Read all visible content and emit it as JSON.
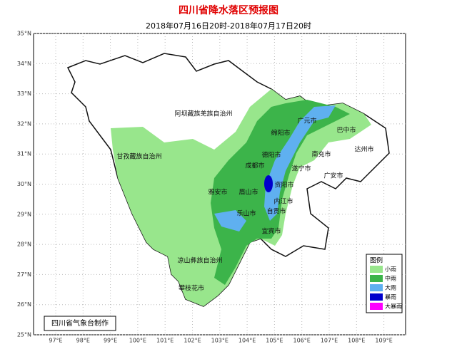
{
  "header": {
    "title": "四川省降水落区预报图",
    "subtitle": "2018年07月16日20时-2018年07月17日20时"
  },
  "map": {
    "lat_ticks": [
      {
        "value": 35,
        "label": "35°N"
      },
      {
        "value": 34,
        "label": "34°N"
      },
      {
        "value": 33,
        "label": "33°N"
      },
      {
        "value": 32,
        "label": "32°N"
      },
      {
        "value": 31,
        "label": "31°N"
      },
      {
        "value": 30,
        "label": "30°N"
      },
      {
        "value": 29,
        "label": "29°N"
      },
      {
        "value": 28,
        "label": "28°N"
      },
      {
        "value": 27,
        "label": "27°N"
      },
      {
        "value": 26,
        "label": "26°N"
      },
      {
        "value": 25,
        "label": "25°N"
      }
    ],
    "lon_ticks": [
      {
        "value": 97,
        "label": "97°E"
      },
      {
        "value": 98,
        "label": "98°E"
      },
      {
        "value": 99,
        "label": "99°E"
      },
      {
        "value": 100,
        "label": "100°E"
      },
      {
        "value": 101,
        "label": "101°E"
      },
      {
        "value": 102,
        "label": "102°E"
      },
      {
        "value": 103,
        "label": "103°E"
      },
      {
        "value": 104,
        "label": "104°E"
      },
      {
        "value": 105,
        "label": "105°E"
      },
      {
        "value": 106,
        "label": "106°E"
      },
      {
        "value": 107,
        "label": "107°E"
      },
      {
        "value": 108,
        "label": "108°E"
      },
      {
        "value": 109,
        "label": "109°E"
      }
    ],
    "cities": [
      "广元市",
      "巴中市",
      "绵阳市",
      "阿坝藏族羌族自治州",
      "甘孜藏族自治州",
      "德阳市",
      "南充市",
      "达州市",
      "成都市",
      "遂宁市",
      "广安市",
      "资阳市",
      "雅安市",
      "眉山市",
      "内江市",
      "乐山市",
      "自贡市",
      "宜宾市",
      "凉山彝族自治州",
      "攀枝花市"
    ],
    "credit": "四川省气象台制作"
  },
  "legend": {
    "title": "图例",
    "items": [
      {
        "label": "小雨",
        "color": "#98e68c"
      },
      {
        "label": "中雨",
        "color": "#3cb44a"
      },
      {
        "label": "大雨",
        "color": "#5fb0f0"
      },
      {
        "label": "暴雨",
        "color": "#0000cc"
      },
      {
        "label": "大暴雨",
        "color": "#ff00ff"
      }
    ]
  }
}
